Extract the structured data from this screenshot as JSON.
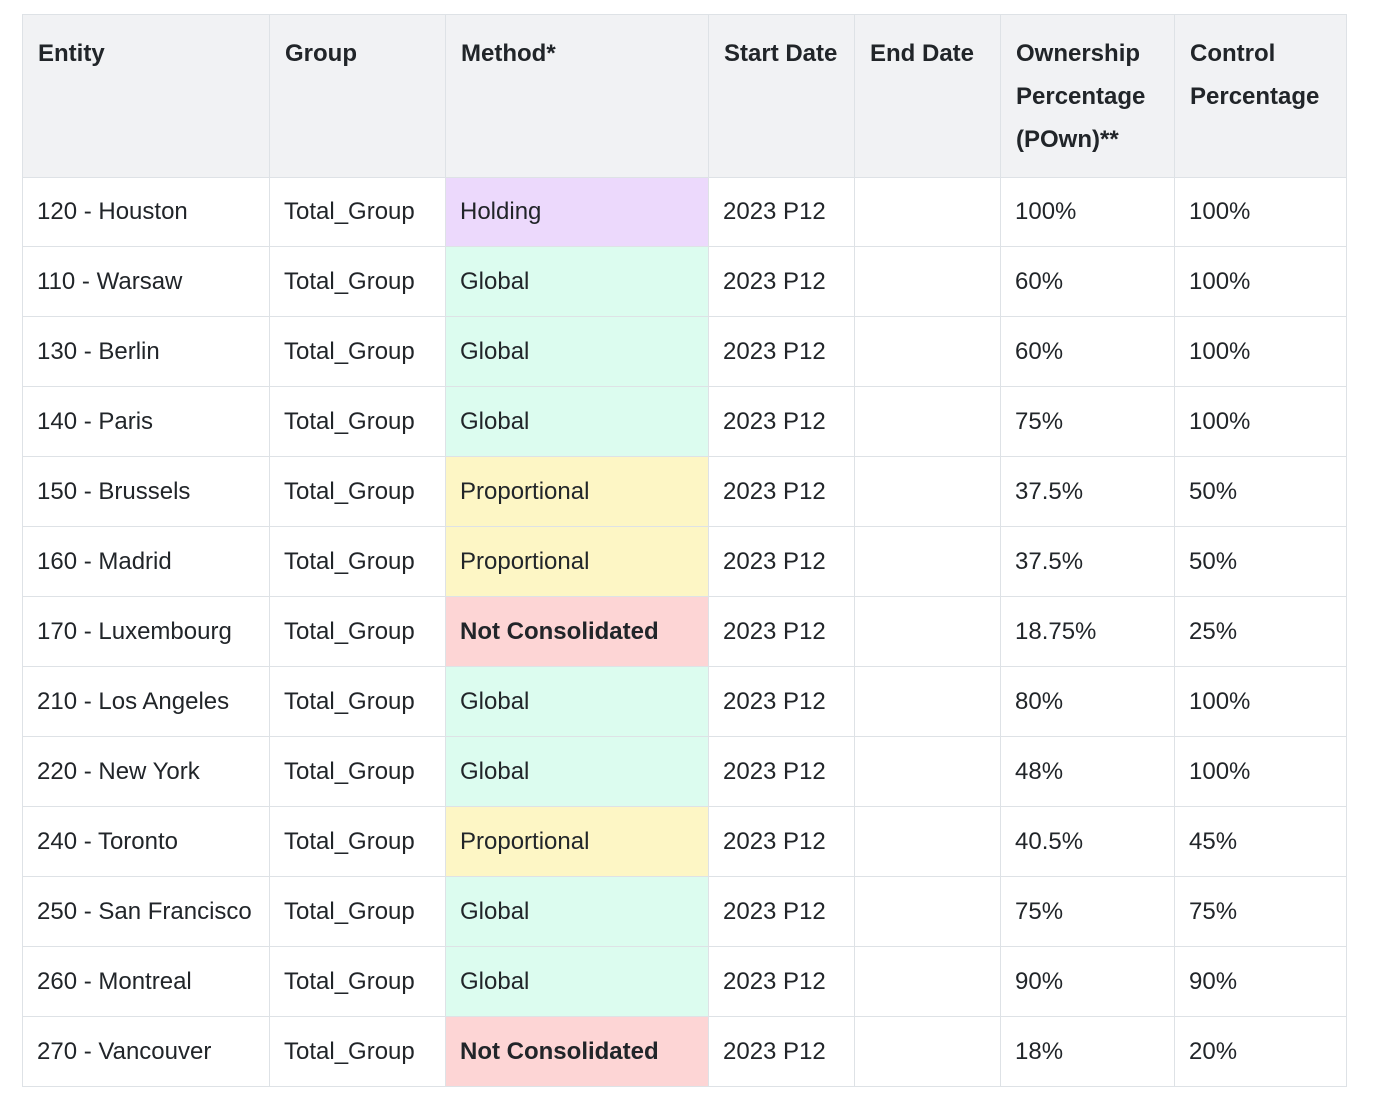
{
  "table": {
    "headers": [
      "Entity",
      "Group",
      "Method*",
      "Start Date",
      "End Date",
      "Ownership Percentage (POwn)**",
      "Control Percentage"
    ],
    "rows": [
      {
        "entity": "120 - Houston",
        "group": "Total_Group",
        "method": "Holding",
        "start": "2023 P12",
        "end": "",
        "pown": "100%",
        "control": "100%"
      },
      {
        "entity": "110 - Warsaw",
        "group": "Total_Group",
        "method": "Global",
        "start": "2023 P12",
        "end": "",
        "pown": "60%",
        "control": "100%"
      },
      {
        "entity": "130 - Berlin",
        "group": "Total_Group",
        "method": "Global",
        "start": "2023 P12",
        "end": "",
        "pown": "60%",
        "control": "100%"
      },
      {
        "entity": "140 - Paris",
        "group": "Total_Group",
        "method": "Global",
        "start": "2023 P12",
        "end": "",
        "pown": "75%",
        "control": "100%"
      },
      {
        "entity": "150 - Brussels",
        "group": "Total_Group",
        "method": "Proportional",
        "start": "2023 P12",
        "end": "",
        "pown": "37.5%",
        "control": "50%"
      },
      {
        "entity": "160 - Madrid",
        "group": "Total_Group",
        "method": "Proportional",
        "start": "2023 P12",
        "end": "",
        "pown": "37.5%",
        "control": "50%"
      },
      {
        "entity": "170 - Luxembourg",
        "group": "Total_Group",
        "method": "Not Consolidated",
        "start": "2023 P12",
        "end": "",
        "pown": "18.75%",
        "control": "25%"
      },
      {
        "entity": "210 - Los Angeles",
        "group": "Total_Group",
        "method": "Global",
        "start": "2023 P12",
        "end": "",
        "pown": "80%",
        "control": "100%"
      },
      {
        "entity": "220 - New York",
        "group": "Total_Group",
        "method": "Global",
        "start": "2023 P12",
        "end": "",
        "pown": "48%",
        "control": "100%"
      },
      {
        "entity": "240 - Toronto",
        "group": "Total_Group",
        "method": "Proportional",
        "start": "2023 P12",
        "end": "",
        "pown": "40.5%",
        "control": "45%"
      },
      {
        "entity": "250 - San Francisco",
        "group": "Total_Group",
        "method": "Global",
        "start": "2023 P12",
        "end": "",
        "pown": "75%",
        "control": "75%"
      },
      {
        "entity": "260 - Montreal",
        "group": "Total_Group",
        "method": "Global",
        "start": "2023 P12",
        "end": "",
        "pown": "90%",
        "control": "90%"
      },
      {
        "entity": "270 - Vancouver",
        "group": "Total_Group",
        "method": "Not Consolidated",
        "start": "2023 P12",
        "end": "",
        "pown": "18%",
        "control": "20%"
      }
    ]
  },
  "method_colors": {
    "Holding": "#ecd9fc",
    "Global": "#dcfcef",
    "Proportional": "#fdf6c5",
    "Not Consolidated": "#fdd5d5"
  }
}
